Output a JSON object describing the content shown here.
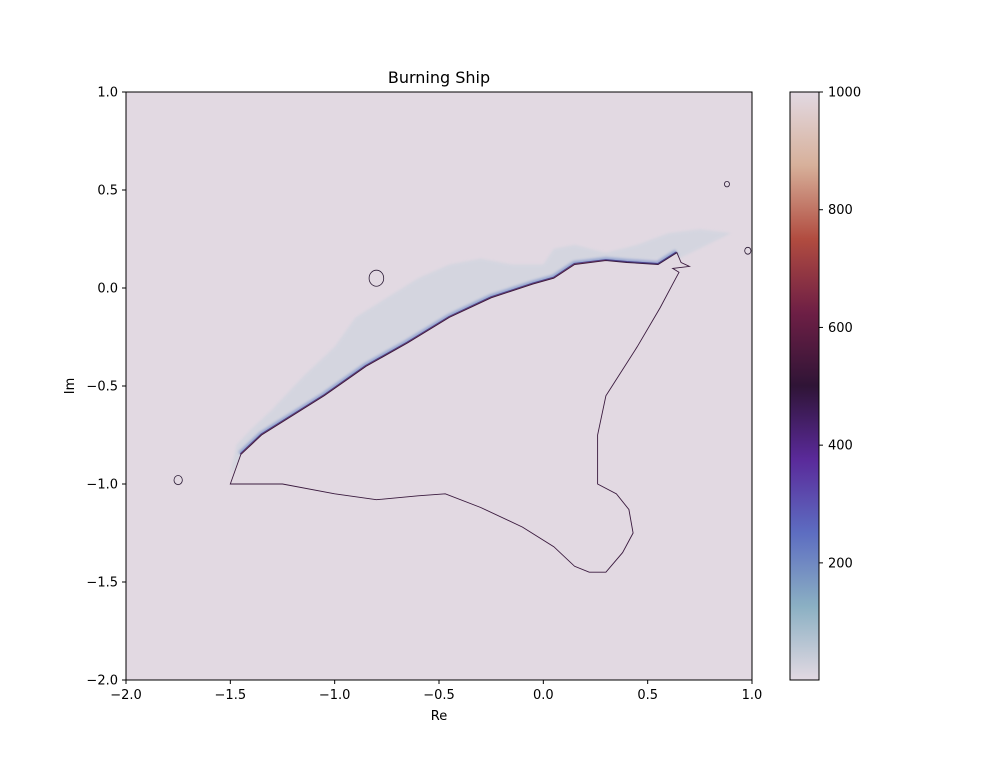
{
  "chart_data": {
    "type": "heatmap",
    "title": "Burning Ship",
    "xlabel": "Re",
    "ylabel": "Im",
    "xlim": [
      -2.0,
      1.0
    ],
    "ylim": [
      -2.0,
      1.0
    ],
    "x_ticks": [
      -2.0,
      -1.5,
      -1.0,
      -0.5,
      0.0,
      0.5,
      1.0
    ],
    "x_tick_labels": [
      "−2.0",
      "−1.5",
      "−1.0",
      "−0.5",
      "0.0",
      "0.5",
      "1.0"
    ],
    "y_ticks": [
      -2.0,
      -1.5,
      -1.0,
      -0.5,
      0.0,
      0.5,
      1.0
    ],
    "y_tick_labels": [
      "−2.0",
      "−1.5",
      "−1.0",
      "−0.5",
      "0.0",
      "0.5",
      "1.0"
    ],
    "colorbar": {
      "range": [
        1,
        1000
      ],
      "ticks": [
        200,
        400,
        600,
        800,
        1000
      ],
      "tick_labels": [
        "200",
        "400",
        "600",
        "800",
        "1000"
      ],
      "colormap": "twilight",
      "colormap_stops": [
        "#e2d9e2",
        "#8bb0c3",
        "#5d6dc1",
        "#5a2a9a",
        "#2f1436",
        "#6e1f45",
        "#b14c40",
        "#d7b09a",
        "#e2d9e2"
      ]
    },
    "background_color": "#e2d9e2",
    "set_boundary": [
      [
        -1.5,
        -1.0
      ],
      [
        -1.25,
        -1.0
      ],
      [
        -1.0,
        -1.05
      ],
      [
        -0.8,
        -1.08
      ],
      [
        -0.6,
        -1.06
      ],
      [
        -0.47,
        -1.05
      ],
      [
        -0.3,
        -1.12
      ],
      [
        -0.1,
        -1.22
      ],
      [
        0.05,
        -1.32
      ],
      [
        0.15,
        -1.42
      ],
      [
        0.22,
        -1.45
      ],
      [
        0.3,
        -1.45
      ],
      [
        0.38,
        -1.35
      ],
      [
        0.43,
        -1.25
      ],
      [
        0.41,
        -1.13
      ],
      [
        0.35,
        -1.05
      ],
      [
        0.26,
        -1.0
      ],
      [
        0.26,
        -0.75
      ],
      [
        0.3,
        -0.55
      ],
      [
        0.45,
        -0.3
      ],
      [
        0.56,
        -0.1
      ],
      [
        0.62,
        0.02
      ],
      [
        0.65,
        0.08
      ],
      [
        0.62,
        0.1
      ],
      [
        0.7,
        0.11
      ],
      [
        0.66,
        0.13
      ],
      [
        0.64,
        0.18
      ],
      [
        0.55,
        0.12
      ],
      [
        0.4,
        0.13
      ],
      [
        0.3,
        0.14
      ],
      [
        0.15,
        0.12
      ],
      [
        0.05,
        0.05
      ],
      [
        -0.05,
        0.02
      ],
      [
        -0.25,
        -0.05
      ],
      [
        -0.45,
        -0.15
      ],
      [
        -0.65,
        -0.28
      ],
      [
        -0.85,
        -0.4
      ],
      [
        -1.05,
        -0.55
      ],
      [
        -1.2,
        -0.65
      ],
      [
        -1.35,
        -0.75
      ],
      [
        -1.45,
        -0.85
      ],
      [
        -1.5,
        -1.0
      ]
    ],
    "escape_band_outline": [
      [
        -1.5,
        -0.95
      ],
      [
        -1.47,
        -0.8
      ],
      [
        -1.4,
        -0.72
      ],
      [
        -1.3,
        -0.62
      ],
      [
        -1.15,
        -0.45
      ],
      [
        -1.0,
        -0.3
      ],
      [
        -0.9,
        -0.15
      ],
      [
        -0.75,
        -0.05
      ],
      [
        -0.6,
        0.05
      ],
      [
        -0.45,
        0.12
      ],
      [
        -0.3,
        0.15
      ],
      [
        -0.15,
        0.12
      ],
      [
        0.0,
        0.12
      ],
      [
        0.05,
        0.2
      ],
      [
        0.15,
        0.22
      ],
      [
        0.3,
        0.18
      ],
      [
        0.45,
        0.22
      ],
      [
        0.6,
        0.28
      ],
      [
        0.75,
        0.3
      ],
      [
        0.9,
        0.28
      ],
      [
        0.65,
        0.15
      ],
      [
        0.45,
        0.14
      ],
      [
        0.2,
        0.14
      ],
      [
        0.05,
        0.05
      ],
      [
        -0.2,
        -0.04
      ],
      [
        -0.45,
        -0.14
      ],
      [
        -0.7,
        -0.3
      ],
      [
        -0.95,
        -0.47
      ],
      [
        -1.15,
        -0.6
      ],
      [
        -1.35,
        -0.75
      ],
      [
        -1.5,
        -0.95
      ]
    ],
    "small_islands": [
      {
        "x": -0.8,
        "y": 0.05,
        "r": 0.035
      },
      {
        "x": 0.88,
        "y": 0.53,
        "r": 0.012
      },
      {
        "x": 0.98,
        "y": 0.19,
        "r": 0.015
      },
      {
        "x": -1.75,
        "y": -0.98,
        "r": 0.02
      }
    ]
  }
}
